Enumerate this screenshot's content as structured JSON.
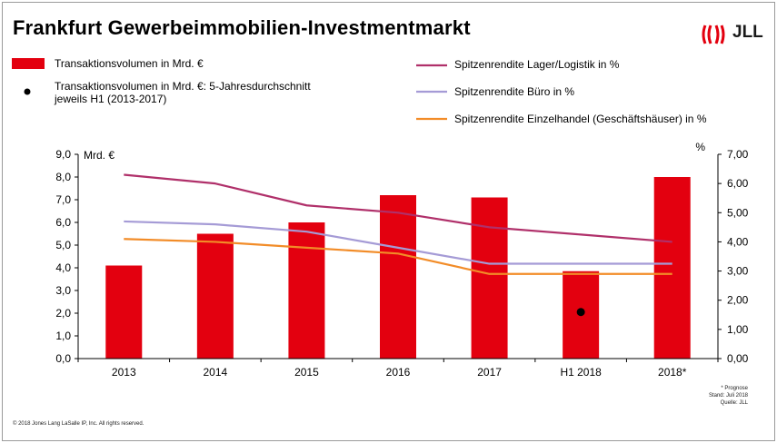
{
  "header": {
    "title": "Frankfurt Gewerbeimmobilien-Investmentmarkt",
    "logo_text": "JLL",
    "logo_icon": "jll-flame-logo"
  },
  "legend": {
    "bars": "Transaktionsvolumen in Mrd. €",
    "dot": "Transaktionsvolumen in Mrd. €: 5-Jahresdurchschnitt jeweils H1 (2013-2017)",
    "lager": "Spitzenrendite Lager/Logistik in %",
    "buero": "Spitzenrendite Büro in %",
    "einzelhandel": "Spitzenrendite Einzelhandel (Geschäftshäuser) in %"
  },
  "footer": {
    "copyright": "© 2018 Jones Lang LaSalle IP, Inc. All rights reserved.",
    "note_prognose": "* Prognose",
    "note_stand": "Stand: Juli 2018",
    "note_quelle": "Quelle: JLL"
  },
  "colors": {
    "bar": "#e3000f",
    "lager": "#b0306a",
    "buero": "#a59bd6",
    "einzelhandel": "#f28c28",
    "dot": "#000000"
  },
  "chart_data": {
    "type": "bar",
    "categories": [
      "2013",
      "2014",
      "2015",
      "2016",
      "2017",
      "H1 2018",
      "2018*"
    ],
    "left_axis": {
      "label": "Mrd. €",
      "ylim": [
        0,
        9
      ],
      "ticks": [
        "0,0",
        "1,0",
        "2,0",
        "3,0",
        "4,0",
        "5,0",
        "6,0",
        "7,0",
        "8,0",
        "9,0"
      ]
    },
    "right_axis": {
      "label": "%",
      "ylim": [
        0,
        7
      ],
      "ticks": [
        "0,00",
        "1,00",
        "2,00",
        "3,00",
        "4,00",
        "5,00",
        "6,00",
        "7,00"
      ]
    },
    "bars": {
      "name": "Transaktionsvolumen in Mrd. €",
      "values": [
        4.1,
        5.5,
        6.0,
        7.2,
        7.1,
        3.85,
        8.0
      ]
    },
    "dot": {
      "name": "Transaktionsvolumen in Mrd. €: 5-Jahresdurchschnitt jeweils H1 (2013-2017)",
      "category": "H1 2018",
      "value": 2.05
    },
    "series": [
      {
        "name": "Spitzenrendite Lager/Logistik in %",
        "axis": "right",
        "values": [
          6.3,
          6.0,
          5.25,
          5.0,
          4.5,
          4.25,
          4.0
        ]
      },
      {
        "name": "Spitzenrendite Büro in %",
        "axis": "right",
        "values": [
          4.7,
          4.6,
          4.35,
          3.8,
          3.25,
          3.25,
          3.25
        ]
      },
      {
        "name": "Spitzenrendite Einzelhandel (Geschäftshäuser) in %",
        "axis": "right",
        "values": [
          4.1,
          4.0,
          3.8,
          3.6,
          2.9,
          2.9,
          2.9
        ]
      }
    ],
    "grid": false,
    "legend_position": "top"
  }
}
